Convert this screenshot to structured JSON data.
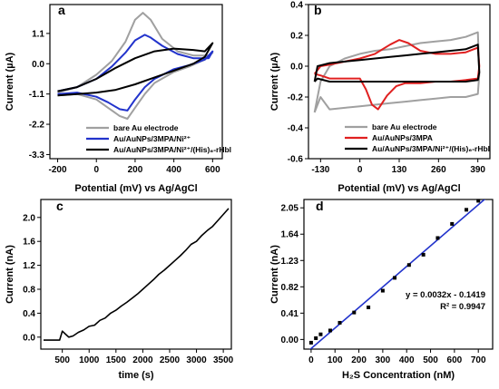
{
  "chart_data": [
    {
      "panel": "a",
      "type": "line",
      "xlabel": "Potential (mV) vs Ag/AgCl",
      "ylabel": "Current (µA)",
      "xlim": [
        -240,
        650
      ],
      "ylim": [
        -3.45,
        2.15
      ],
      "xticks": [
        -200,
        0,
        200,
        400,
        600
      ],
      "yticks": [
        1.1,
        0.0,
        -1.1,
        -2.2,
        -3.3
      ],
      "ytick_labels": [
        "1.1",
        "0.0",
        "-1.1",
        "-2.2",
        "-3.3"
      ],
      "legend_position": "lower-left",
      "series": [
        {
          "name": "bare Au electrode",
          "color": "#a0a0a0",
          "x": [
            -200,
            -100,
            0,
            80,
            150,
            200,
            240,
            280,
            340,
            420,
            500,
            580,
            600,
            560,
            480,
            400,
            300,
            250,
            200,
            160,
            120,
            60,
            0,
            -100,
            -200
          ],
          "y": [
            -1.05,
            -0.85,
            -0.4,
            0.1,
            0.8,
            1.6,
            1.85,
            1.6,
            0.9,
            0.45,
            0.3,
            0.3,
            0.4,
            0.15,
            -0.1,
            -0.3,
            -0.7,
            -1.1,
            -1.6,
            -2.0,
            -1.9,
            -1.6,
            -1.3,
            -1.1,
            -1.15
          ]
        },
        {
          "name": "Au/AuNPs/3MPA/Ni²⁺",
          "color": "#2233cc",
          "x": [
            -200,
            -100,
            0,
            80,
            150,
            200,
            250,
            280,
            340,
            420,
            500,
            580,
            600,
            560,
            480,
            400,
            300,
            250,
            200,
            160,
            120,
            60,
            0,
            -100,
            -200
          ],
          "y": [
            -1.0,
            -0.85,
            -0.55,
            -0.1,
            0.4,
            0.85,
            1.05,
            0.95,
            0.65,
            0.35,
            0.2,
            0.2,
            0.45,
            0.15,
            -0.05,
            -0.2,
            -0.55,
            -0.85,
            -1.3,
            -1.7,
            -1.65,
            -1.4,
            -1.2,
            -1.05,
            -1.1
          ]
        },
        {
          "name": "Au/AuNPs/3MPA/Ni²⁺/(His)₆-rHbl",
          "color": "#000000",
          "x": [
            -200,
            -100,
            0,
            100,
            200,
            300,
            400,
            500,
            560,
            600,
            560,
            500,
            400,
            300,
            200,
            100,
            0,
            -100,
            -200
          ],
          "y": [
            -1.0,
            -0.85,
            -0.55,
            -0.15,
            0.2,
            0.45,
            0.55,
            0.5,
            0.45,
            0.75,
            0.25,
            0.0,
            -0.25,
            -0.5,
            -0.75,
            -0.95,
            -1.05,
            -1.1,
            -1.15
          ]
        }
      ]
    },
    {
      "panel": "b",
      "type": "line",
      "xlabel": "Potential (mV) vs Ag/AgCl",
      "ylabel": "Current (µA)",
      "xlim": [
        -170,
        430
      ],
      "ylim": [
        -0.6,
        0.4
      ],
      "xticks": [
        -130,
        0,
        130,
        260,
        390
      ],
      "yticks": [
        0.4,
        0.2,
        0.0,
        -0.2,
        -0.4,
        -0.6
      ],
      "ytick_labels": [
        "0.4",
        "0.2",
        "0.0",
        "-0.2",
        "-0.4",
        "-0.6"
      ],
      "legend_position": "lower-right",
      "series": [
        {
          "name": "bare Au electrode",
          "color": "#a0a0a0",
          "x": [
            -150,
            -130,
            -100,
            -50,
            0,
            50,
            100,
            150,
            200,
            250,
            300,
            350,
            390,
            395,
            390,
            350,
            300,
            250,
            200,
            150,
            100,
            50,
            0,
            -50,
            -100,
            -130,
            -150
          ],
          "y": [
            -0.3,
            -0.1,
            0.0,
            0.05,
            0.08,
            0.1,
            0.11,
            0.13,
            0.15,
            0.16,
            0.17,
            0.19,
            0.22,
            -0.05,
            -0.18,
            -0.2,
            -0.2,
            -0.21,
            -0.22,
            -0.23,
            -0.24,
            -0.25,
            -0.26,
            -0.27,
            -0.28,
            -0.2,
            -0.3
          ]
        },
        {
          "name": "Au/AuNPs/3MPA",
          "color": "#e02020",
          "x": [
            -150,
            -130,
            -100,
            -50,
            0,
            50,
            100,
            130,
            160,
            200,
            250,
            300,
            350,
            390,
            395,
            390,
            350,
            300,
            250,
            200,
            150,
            120,
            90,
            60,
            40,
            20,
            0,
            -50,
            -100,
            -130,
            -150
          ],
          "y": [
            -0.05,
            0.0,
            0.01,
            0.03,
            0.05,
            0.08,
            0.14,
            0.17,
            0.15,
            0.1,
            0.08,
            0.08,
            0.09,
            0.12,
            0.0,
            -0.08,
            -0.09,
            -0.1,
            -0.1,
            -0.11,
            -0.11,
            -0.13,
            -0.19,
            -0.28,
            -0.25,
            -0.15,
            -0.08,
            -0.08,
            -0.08,
            -0.06,
            -0.05
          ]
        },
        {
          "name": "Au/AuNPs/3MPA/Ni²⁺/(His)₆-rHbl",
          "color": "#000000",
          "x": [
            -150,
            -140,
            -100,
            -50,
            0,
            50,
            100,
            150,
            200,
            250,
            300,
            350,
            390,
            395,
            390,
            350,
            300,
            250,
            200,
            150,
            100,
            50,
            0,
            -50,
            -100,
            -140,
            -150
          ],
          "y": [
            -0.1,
            0.0,
            0.02,
            0.03,
            0.04,
            0.05,
            0.06,
            0.07,
            0.08,
            0.09,
            0.1,
            0.11,
            0.14,
            -0.04,
            -0.09,
            -0.1,
            -0.1,
            -0.1,
            -0.1,
            -0.1,
            -0.1,
            -0.1,
            -0.1,
            -0.1,
            -0.1,
            -0.08,
            -0.1
          ]
        }
      ]
    },
    {
      "panel": "c",
      "type": "line",
      "xlabel": "time (s)",
      "ylabel": "Current (nA)",
      "xlim": [
        100,
        3650
      ],
      "ylim": [
        -0.2,
        2.3
      ],
      "xticks": [
        500,
        1000,
        1500,
        2000,
        2500,
        3000,
        3500
      ],
      "yticks": [
        0.0,
        0.4,
        0.8,
        1.2,
        1.6,
        2.0
      ],
      "ytick_labels": [
        "0.0",
        "0.4",
        "0.8",
        "1.2",
        "1.6",
        "2.0"
      ],
      "series": [
        {
          "name": "",
          "color": "#000000",
          "x": [
            150,
            300,
            450,
            500,
            560,
            620,
            700,
            800,
            900,
            1000,
            1100,
            1200,
            1300,
            1400,
            1500,
            1600,
            1700,
            1800,
            1900,
            2000,
            2100,
            2200,
            2300,
            2400,
            2500,
            2600,
            2700,
            2800,
            2900,
            3000,
            3100,
            3200,
            3300,
            3400,
            3500,
            3600
          ],
          "y": [
            -0.05,
            -0.05,
            -0.05,
            0.1,
            0.05,
            0.0,
            0.02,
            0.08,
            0.12,
            0.18,
            0.2,
            0.28,
            0.32,
            0.4,
            0.45,
            0.52,
            0.58,
            0.65,
            0.72,
            0.8,
            0.88,
            0.96,
            1.05,
            1.12,
            1.2,
            1.28,
            1.36,
            1.45,
            1.55,
            1.6,
            1.7,
            1.78,
            1.85,
            1.95,
            2.05,
            2.15
          ]
        }
      ]
    },
    {
      "panel": "d",
      "type": "scatter",
      "xlabel": "H₂S Concentration (nM)",
      "ylabel": "Current (nA)",
      "xlim": [
        -30,
        760
      ],
      "ylim": [
        -0.15,
        2.18
      ],
      "xticks": [
        0,
        100,
        200,
        300,
        400,
        500,
        600,
        700
      ],
      "yticks": [
        0.0,
        0.41,
        0.82,
        1.23,
        1.64,
        2.05
      ],
      "ytick_labels": [
        "0.00",
        "0.41",
        "0.82",
        "1.23",
        "1.64",
        "2.05"
      ],
      "series": [
        {
          "name": "",
          "color": "#000000",
          "x": [
            0,
            20,
            40,
            80,
            120,
            180,
            240,
            300,
            350,
            410,
            470,
            530,
            590,
            650,
            700
          ],
          "y": [
            -0.05,
            0.02,
            0.08,
            0.14,
            0.26,
            0.42,
            0.5,
            0.76,
            0.96,
            1.16,
            1.32,
            1.58,
            1.8,
            2.02,
            2.16
          ]
        }
      ],
      "fit": {
        "slope": 0.0032,
        "intercept": -0.1419,
        "color": "#2233cc"
      },
      "annotations": [
        "y = 0.0032x - 0.1419",
        "R² = 0.9947"
      ]
    }
  ]
}
